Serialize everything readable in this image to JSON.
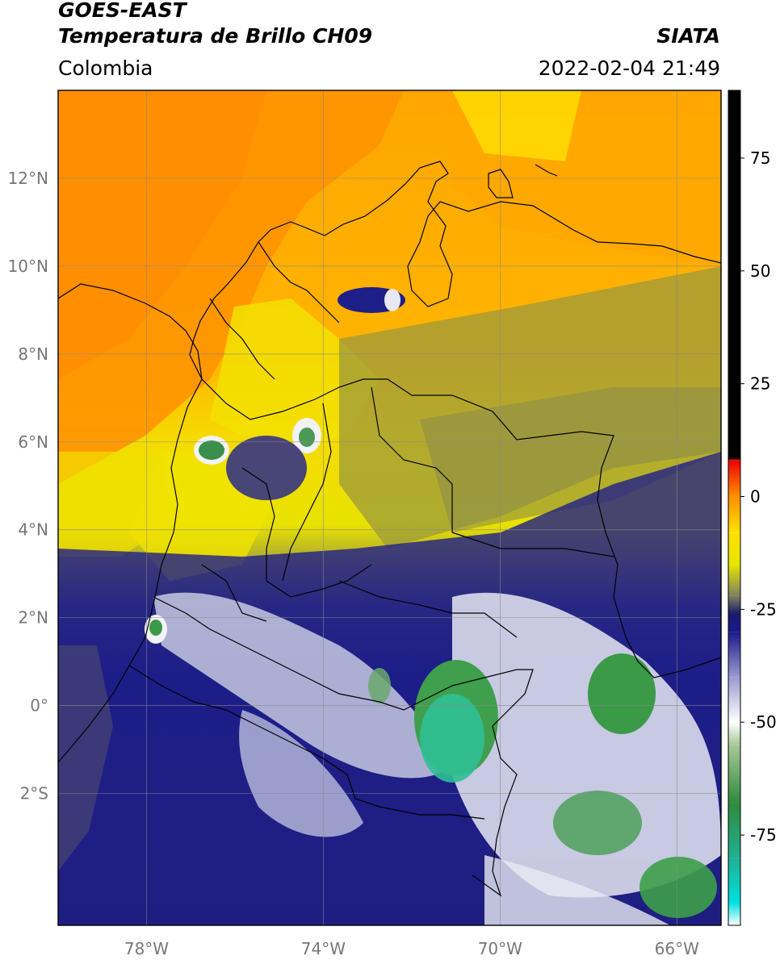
{
  "header": {
    "satellite": "GOES-EAST",
    "product": "Temperatura de Brillo CH09",
    "organization": "SIATA",
    "region": "Colombia",
    "timestamp": "2022-02-04 21:49"
  },
  "map": {
    "lon_range": [
      -80,
      -65
    ],
    "lat_range": [
      -5,
      14
    ],
    "lat_ticks": [
      {
        "value": 12,
        "label": "12°N"
      },
      {
        "value": 10,
        "label": "10°N"
      },
      {
        "value": 8,
        "label": "8°N"
      },
      {
        "value": 6,
        "label": "6°N"
      },
      {
        "value": 4,
        "label": "4°N"
      },
      {
        "value": 2,
        "label": "2°N"
      },
      {
        "value": 0,
        "label": "0°"
      },
      {
        "value": -2,
        "label": "2°S"
      }
    ],
    "lon_ticks": [
      {
        "value": -78,
        "label": "78°W"
      },
      {
        "value": -74,
        "label": "74°W"
      },
      {
        "value": -70,
        "label": "70°W"
      },
      {
        "value": -66,
        "label": "66°W"
      }
    ],
    "grid": true
  },
  "colorbar": {
    "range": [
      -95,
      90
    ],
    "ticks": [
      {
        "value": 75,
        "label": "75"
      },
      {
        "value": 50,
        "label": "50"
      },
      {
        "value": 25,
        "label": "25"
      },
      {
        "value": 0,
        "label": "0"
      },
      {
        "value": -25,
        "label": "-25"
      },
      {
        "value": -50,
        "label": "-50"
      },
      {
        "value": -75,
        "label": "-75"
      }
    ],
    "stops": [
      {
        "value": -95,
        "color": "#ffffff"
      },
      {
        "value": -90,
        "color": "#00e0e0"
      },
      {
        "value": -80,
        "color": "#20b090"
      },
      {
        "value": -68,
        "color": "#2e8b3c"
      },
      {
        "value": -55,
        "color": "#a8c898"
      },
      {
        "value": -50,
        "color": "#ffffff"
      },
      {
        "value": -40,
        "color": "#9a9ad0"
      },
      {
        "value": -30,
        "color": "#1a1a8a"
      },
      {
        "value": -26,
        "color": "#1a1a6a"
      },
      {
        "value": -22,
        "color": "#808060"
      },
      {
        "value": -15,
        "color": "#e6e600"
      },
      {
        "value": -8,
        "color": "#ffe000"
      },
      {
        "value": 0,
        "color": "#ff9000"
      },
      {
        "value": 8,
        "color": "#ee0000"
      },
      {
        "value": 8.5,
        "color": "#000000"
      },
      {
        "value": 90,
        "color": "#000000"
      }
    ]
  },
  "colors": {
    "orange": "#ff9a00",
    "orange_light": "#ffb000",
    "yellow": "#f2e200",
    "olive": "#9a9a40",
    "navy": "#1c1c86",
    "white_cloud": "#eef0f6",
    "green": "#3c9e4a",
    "teal": "#2fbf95",
    "border": "#000000",
    "grid": "#888888"
  }
}
